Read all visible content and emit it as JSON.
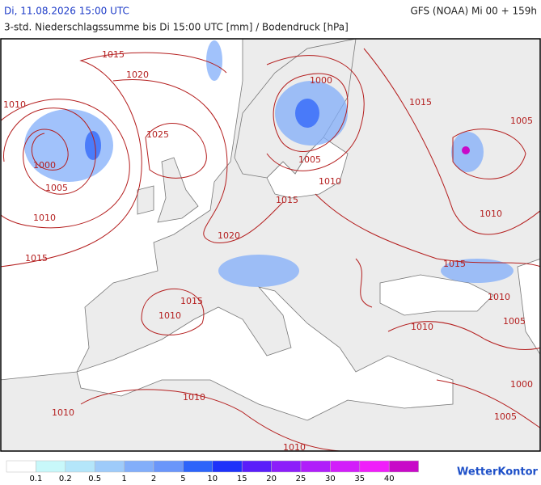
{
  "header": {
    "left_title": "Di, 11.08.2026 15:00 UTC",
    "right_title": "GFS (NOAA) Mi 00 + 159h",
    "subtitle": "3-std. Niederschlagssumme bis Di 15:00 UTC [mm] / Bodendruck [hPa]"
  },
  "isobar_labels": [
    1015,
    1020,
    1010,
    1025,
    1000,
    1005,
    1010,
    1015,
    1000,
    1015,
    1005,
    1005,
    1010,
    1015,
    1020,
    1010,
    1015,
    1010,
    1015,
    1010,
    1005,
    1010,
    1000,
    1010,
    1010,
    1005,
    1010
  ],
  "legend": {
    "labels": [
      0.1,
      0.2,
      0.5,
      1,
      2,
      5,
      10,
      15,
      20,
      25,
      30,
      35,
      40
    ],
    "colors": [
      "#ffffff",
      "#c8f8fa",
      "#b4e6fa",
      "#9ecbfa",
      "#82aefa",
      "#6a96fa",
      "#2d64fa",
      "#1e32fa",
      "#5a1efa",
      "#8c1efa",
      "#b01efa",
      "#d21efa",
      "#f01efa",
      "#c80ac8"
    ]
  },
  "brand": "WetterKontor"
}
